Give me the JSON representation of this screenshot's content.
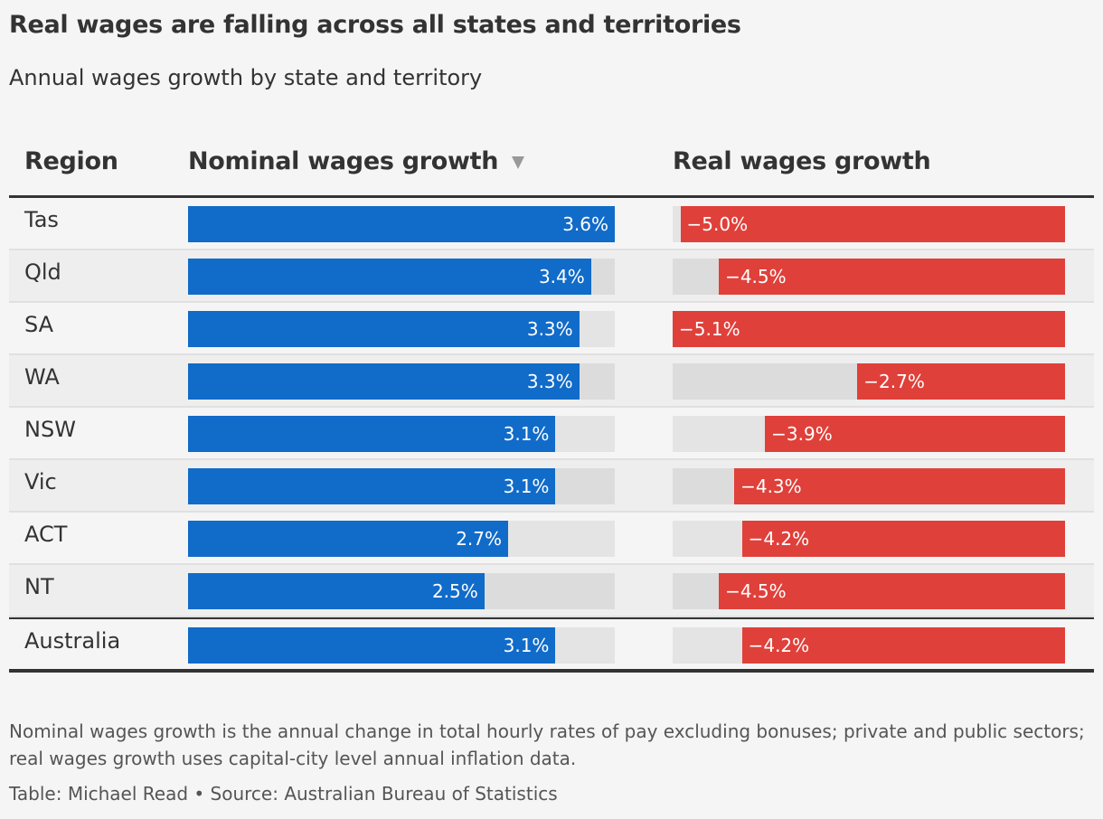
{
  "title": "Real wages are falling across all states and territories",
  "subtitle": "Annual wages growth by state and territory",
  "colors": {
    "nominal": "#116bc9",
    "real": "#e0403a",
    "track": "#e4e4e4"
  },
  "chart_data": {
    "type": "table",
    "columns": [
      "Region",
      "Nominal wages growth",
      "Real wages growth"
    ],
    "sorted_by": "Nominal wages growth",
    "sort_direction": "descending",
    "rows": [
      {
        "region": "Tas",
        "nominal": 3.6,
        "nominal_label": "3.6%",
        "real": -5.0,
        "real_label": "−5.0%"
      },
      {
        "region": "Qld",
        "nominal": 3.4,
        "nominal_label": "3.4%",
        "real": -4.5,
        "real_label": "−4.5%"
      },
      {
        "region": "SA",
        "nominal": 3.3,
        "nominal_label": "3.3%",
        "real": -5.1,
        "real_label": "−5.1%"
      },
      {
        "region": "WA",
        "nominal": 3.3,
        "nominal_label": "3.3%",
        "real": -2.7,
        "real_label": "−2.7%"
      },
      {
        "region": "NSW",
        "nominal": 3.1,
        "nominal_label": "3.1%",
        "real": -3.9,
        "real_label": "−3.9%"
      },
      {
        "region": "Vic",
        "nominal": 3.1,
        "nominal_label": "3.1%",
        "real": -4.3,
        "real_label": "−4.3%"
      },
      {
        "region": "ACT",
        "nominal": 2.7,
        "nominal_label": "2.7%",
        "real": -4.2,
        "real_label": "−4.2%"
      },
      {
        "region": "NT",
        "nominal": 2.5,
        "nominal_label": "2.5%",
        "real": -4.5,
        "real_label": "−4.5%"
      }
    ],
    "total": {
      "region": "Australia",
      "nominal": 3.1,
      "nominal_label": "3.1%",
      "real": -4.2,
      "real_label": "−4.2%"
    },
    "nominal_max": 3.6,
    "real_max_abs": 5.1
  },
  "footnote": "Nominal wages growth is the annual change in total hourly rates of pay excluding bonuses; private and public sectors; real wages growth uses capital-city level annual inflation data.",
  "credit": "Table: Michael Read • Source: Australian Bureau of Statistics"
}
